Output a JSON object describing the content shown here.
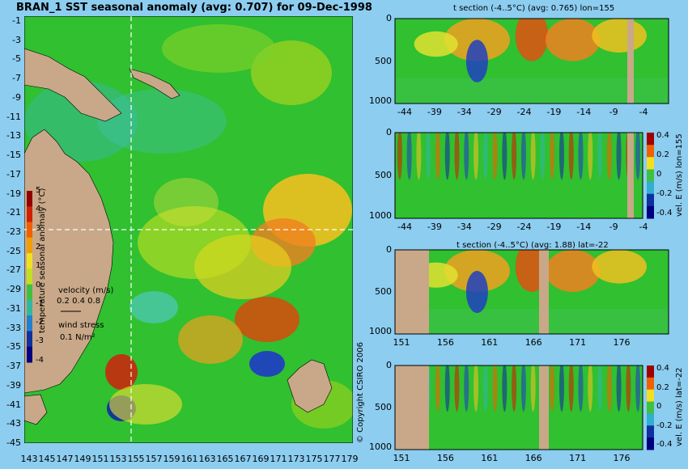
{
  "chart_data": [
    {
      "type": "heatmap",
      "title": "BRAN_1 SST seasonal anomaly (avg: 0.707) for 09-Dec-1998",
      "x_ticks": [
        "143",
        "145",
        "147",
        "149",
        "151",
        "153",
        "155",
        "157",
        "159",
        "161",
        "163",
        "165",
        "167",
        "169",
        "171",
        "173",
        "175",
        "177",
        "179"
      ],
      "y_ticks": [
        "-1",
        "-3",
        "-5",
        "-7",
        "-9",
        "-11",
        "-13",
        "-15",
        "-17",
        "-19",
        "-21",
        "-23",
        "-25",
        "-27",
        "-29",
        "-31",
        "-33",
        "-35",
        "-37",
        "-39",
        "-41",
        "-43",
        "-45"
      ],
      "colorbar": {
        "label": "temperature seasonal anomaly (°C)",
        "ticks": [
          "5",
          "4",
          "3",
          "2",
          "1",
          "0",
          "-1",
          "-2",
          "-3",
          "-4"
        ],
        "range": [
          -4,
          5
        ]
      },
      "velocity_legend": {
        "label": "velocity (m/s)",
        "values": "0.2 0.4 0.8"
      },
      "wind_legend": {
        "label": "wind stress",
        "value": "0.1 N/m²"
      },
      "crosshair": {
        "lon": 155,
        "lat": -22
      }
    },
    {
      "type": "heatmap",
      "title": "t section (-4..5°C) (avg: 0.765) lon=155",
      "x_ticks": [
        "-44",
        "-39",
        "-34",
        "-29",
        "-24",
        "-19",
        "-14",
        "-9",
        "-4"
      ],
      "y_ticks": [
        "0",
        "500",
        "1000"
      ]
    },
    {
      "type": "heatmap",
      "title": "",
      "x_ticks": [
        "-44",
        "-39",
        "-34",
        "-29",
        "-24",
        "-19",
        "-14",
        "-9",
        "-4"
      ],
      "y_ticks": [
        "0",
        "500",
        "1000"
      ],
      "colorbar": {
        "label": "vel. E (m/s) lon=155",
        "ticks": [
          "0.4",
          "0.2",
          "0",
          "-0.2",
          "-0.4"
        ],
        "range": [
          -0.4,
          0.4
        ]
      }
    },
    {
      "type": "heatmap",
      "title": "t section (-4..5°C) (avg: 1.88) lat=-22",
      "x_ticks": [
        "151",
        "156",
        "161",
        "166",
        "171",
        "176"
      ],
      "y_ticks": [
        "0",
        "500",
        "1000"
      ]
    },
    {
      "type": "heatmap",
      "title": "",
      "x_ticks": [
        "151",
        "156",
        "161",
        "166",
        "171",
        "176"
      ],
      "y_ticks": [
        "0",
        "500",
        "1000"
      ],
      "colorbar": {
        "label": "vel. E (m/s) lat=-22",
        "ticks": [
          "0.4",
          "0.2",
          "0",
          "-0.2",
          "-0.4"
        ],
        "range": [
          -0.4,
          0.4
        ]
      }
    }
  ],
  "copyright": "© Copyright CSIRO 2006",
  "colors": {
    "background": "#8ccdf0",
    "land": "#c8a888",
    "sea_base": "#30c030"
  }
}
